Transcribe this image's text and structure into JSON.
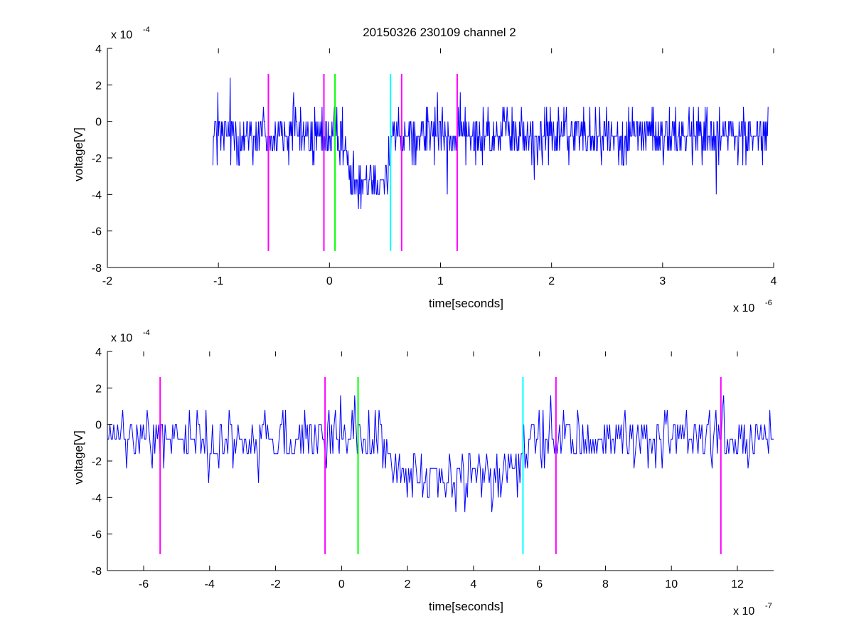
{
  "title": "20150326 230109 channel 2",
  "colors": {
    "signal": "#0000ff",
    "magenta": "#ff00ff",
    "green": "#00ff00",
    "cyan": "#00ffff",
    "axes": "#000000"
  },
  "chart_data": [
    {
      "type": "line",
      "title": "20150326 230109 channel 2",
      "xlabel": "time[seconds]",
      "ylabel": "voltage[V]",
      "x_scale_label": "x 10",
      "x_scale_exponent": "-6",
      "y_scale_label": "x 10",
      "y_scale_exponent": "-4",
      "xlim": [
        -2,
        4
      ],
      "ylim": [
        -8,
        4
      ],
      "x_unit_multiplier": "1e-6",
      "y_unit_multiplier": "1e-4",
      "x_ticks": [
        "-2",
        "-1",
        "0",
        "1",
        "2",
        "3",
        "4"
      ],
      "y_ticks": [
        "4",
        "2",
        "0",
        "-2",
        "-4",
        "-6",
        "-8"
      ],
      "grid": false,
      "signal": {
        "x_start": -1.05,
        "x_end": 3.95,
        "baseline": -0.75,
        "dip": {
          "start": 0.18,
          "end": 0.52,
          "level": -3.0
        },
        "step": 0.8
      },
      "markers": [
        {
          "x": -0.55,
          "color": "magenta",
          "y_range": [
            -7.1,
            2.6
          ]
        },
        {
          "x": -0.05,
          "color": "magenta",
          "y_range": [
            -7.1,
            2.6
          ]
        },
        {
          "x": 0.05,
          "color": "green",
          "y_range": [
            -7.1,
            2.6
          ]
        },
        {
          "x": 0.55,
          "color": "cyan",
          "y_range": [
            -7.1,
            2.6
          ]
        },
        {
          "x": 0.65,
          "color": "magenta",
          "y_range": [
            -7.1,
            2.6
          ]
        },
        {
          "x": 1.15,
          "color": "magenta",
          "y_range": [
            -7.1,
            2.6
          ]
        }
      ]
    },
    {
      "type": "line",
      "title": "",
      "xlabel": "time[seconds]",
      "ylabel": "voltage[V]",
      "x_scale_label": "x 10",
      "x_scale_exponent": "-7",
      "y_scale_label": "x 10",
      "y_scale_exponent": "-4",
      "xlim": [
        -7.1,
        13.1
      ],
      "ylim": [
        -8,
        4
      ],
      "x_unit_multiplier": "1e-7",
      "y_unit_multiplier": "1e-4",
      "x_ticks": [
        "-6",
        "-4",
        "-2",
        "0",
        "2",
        "4",
        "6",
        "8",
        "10",
        "12"
      ],
      "y_ticks": [
        "4",
        "2",
        "0",
        "-2",
        "-4",
        "-6",
        "-8"
      ],
      "grid": false,
      "signal": {
        "x_start": -7.1,
        "x_end": 13.1,
        "baseline": -0.75,
        "dip": {
          "start": 1.8,
          "end": 5.2,
          "level": -3.0
        },
        "step": 0.8
      },
      "markers": [
        {
          "x": -5.5,
          "color": "magenta",
          "y_range": [
            -7.1,
            2.6
          ]
        },
        {
          "x": -0.5,
          "color": "magenta",
          "y_range": [
            -7.1,
            2.6
          ]
        },
        {
          "x": 0.5,
          "color": "green",
          "y_range": [
            -7.1,
            2.6
          ]
        },
        {
          "x": 5.5,
          "color": "cyan",
          "y_range": [
            -7.1,
            2.6
          ]
        },
        {
          "x": 6.5,
          "color": "magenta",
          "y_range": [
            -7.1,
            2.6
          ]
        },
        {
          "x": 11.5,
          "color": "magenta",
          "y_range": [
            -7.1,
            2.6
          ]
        }
      ]
    }
  ]
}
